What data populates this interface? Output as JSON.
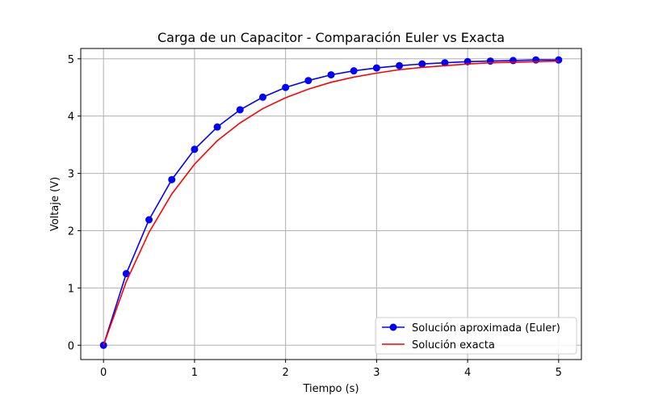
{
  "chart_data": {
    "type": "line",
    "title": "Carga de un Capacitor - Comparación Euler vs Exacta",
    "xlabel": "Tiempo (s)",
    "ylabel": "Voltaje (V)",
    "xlim": [
      -0.25,
      5.25
    ],
    "ylim": [
      -0.25,
      5.18
    ],
    "xticks": [
      0,
      1,
      2,
      3,
      4,
      5
    ],
    "yticks": [
      0,
      1,
      2,
      3,
      4,
      5
    ],
    "grid": true,
    "legend_position": "lower-right",
    "series": [
      {
        "name": "Solución aproximada (Euler)",
        "color": "#0000ff",
        "marker": "circle",
        "x": [
          0,
          0.25,
          0.5,
          0.75,
          1.0,
          1.25,
          1.5,
          1.75,
          2.0,
          2.25,
          2.5,
          2.75,
          3.0,
          3.25,
          3.5,
          3.75,
          4.0,
          4.25,
          4.5,
          4.75,
          5.0
        ],
        "y": [
          0,
          1.25,
          2.19,
          2.89,
          3.42,
          3.81,
          4.11,
          4.33,
          4.5,
          4.62,
          4.72,
          4.79,
          4.84,
          4.88,
          4.91,
          4.93,
          4.95,
          4.96,
          4.97,
          4.98,
          4.98
        ]
      },
      {
        "name": "Solución exacta",
        "color": "#ff0000",
        "marker": "none",
        "x": [
          0,
          0.25,
          0.5,
          0.75,
          1.0,
          1.25,
          1.5,
          1.75,
          2.0,
          2.25,
          2.5,
          2.75,
          3.0,
          3.25,
          3.5,
          3.75,
          4.0,
          4.25,
          4.5,
          4.75,
          5.0
        ],
        "y": [
          0,
          1.11,
          1.97,
          2.64,
          3.16,
          3.57,
          3.88,
          4.13,
          4.32,
          4.47,
          4.59,
          4.68,
          4.75,
          4.81,
          4.85,
          4.88,
          4.91,
          4.93,
          4.94,
          4.95,
          4.96
        ]
      }
    ]
  }
}
